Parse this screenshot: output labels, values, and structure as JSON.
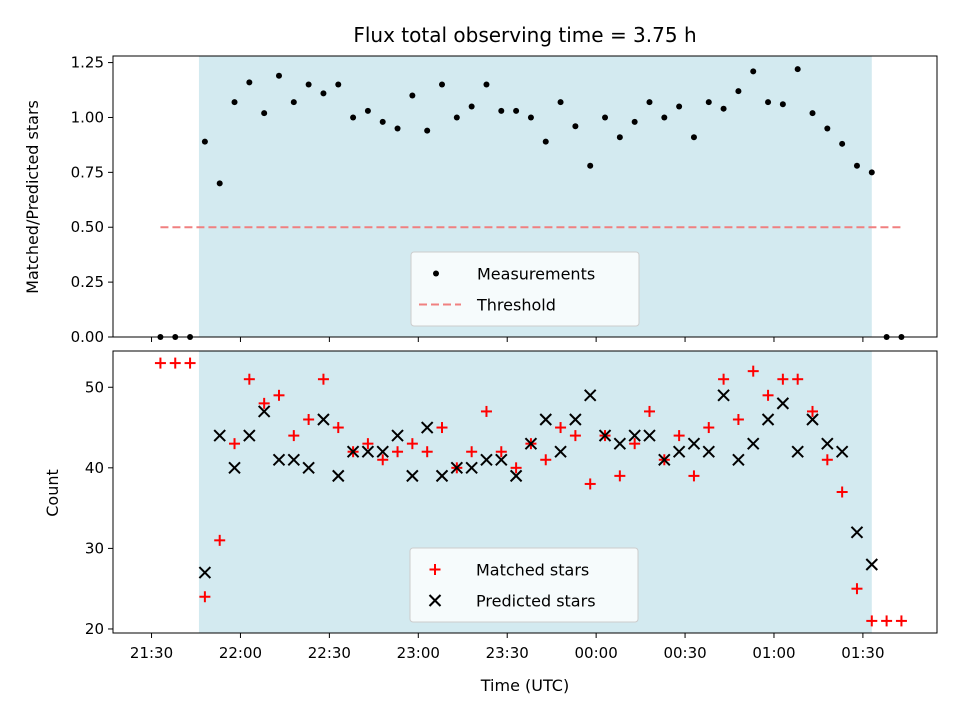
{
  "chart_data": [
    {
      "type": "scatter",
      "title": "Flux total observing time = 3.75 h",
      "ylabel": "Matched/Predicted stars",
      "xlabel": "",
      "ylim": [
        0,
        1.28
      ],
      "yticks": [
        "0.00",
        "0.25",
        "0.50",
        "0.75",
        "1.00",
        "1.25"
      ],
      "shaded_window": {
        "start": "21:46",
        "end": "01:33",
        "color": "#d3eaf0"
      },
      "legend_position": "lower center",
      "series": [
        {
          "name": "Measurements",
          "marker": "dot",
          "color": "#000000",
          "x": [
            "21:33",
            "21:38",
            "21:43",
            "21:48",
            "21:53",
            "21:58",
            "22:03",
            "22:08",
            "22:13",
            "22:18",
            "22:23",
            "22:28",
            "22:33",
            "22:38",
            "22:43",
            "22:48",
            "22:53",
            "22:58",
            "23:03",
            "23:08",
            "23:13",
            "23:18",
            "23:23",
            "23:28",
            "23:33",
            "23:38",
            "23:43",
            "23:48",
            "23:53",
            "23:58",
            "00:03",
            "00:08",
            "00:13",
            "00:18",
            "00:23",
            "00:28",
            "00:33",
            "00:38",
            "00:43",
            "00:48",
            "00:53",
            "00:58",
            "01:03",
            "01:08",
            "01:13",
            "01:18",
            "01:23",
            "01:28",
            "01:33",
            "01:38",
            "01:43"
          ],
          "y": [
            0,
            0,
            0,
            0.89,
            0.7,
            1.07,
            1.16,
            1.02,
            1.19,
            1.07,
            1.15,
            1.11,
            1.15,
            1.0,
            1.03,
            0.98,
            0.95,
            1.1,
            0.94,
            1.15,
            1.0,
            1.05,
            1.15,
            1.03,
            1.03,
            1.0,
            0.89,
            1.07,
            0.96,
            0.78,
            1.0,
            0.91,
            0.98,
            1.07,
            1.0,
            1.05,
            0.91,
            1.07,
            1.04,
            1.12,
            1.21,
            1.07,
            1.06,
            1.22,
            1.02,
            0.95,
            0.88,
            0.78,
            0.75,
            0,
            0
          ]
        },
        {
          "name": "Threshold",
          "marker": "dashed-line",
          "color": "#f08080",
          "x": [
            "21:33",
            "01:43"
          ],
          "y": [
            0.5,
            0.5
          ]
        }
      ]
    },
    {
      "type": "scatter",
      "title": "",
      "ylabel": "Count",
      "xlabel": "Time (UTC)",
      "ylim": [
        19.5,
        54.5
      ],
      "yticks": [
        "20",
        "30",
        "40",
        "50"
      ],
      "xticks": [
        "21:30",
        "22:00",
        "22:30",
        "23:00",
        "23:30",
        "00:00",
        "00:30",
        "01:00",
        "01:30"
      ],
      "shaded_window": {
        "start": "21:46",
        "end": "01:33",
        "color": "#d3eaf0"
      },
      "legend_position": "lower center",
      "series": [
        {
          "name": "Matched stars",
          "marker": "plus",
          "color": "#ff0000",
          "x": [
            "21:33",
            "21:38",
            "21:43",
            "21:48",
            "21:53",
            "21:58",
            "22:03",
            "22:08",
            "22:13",
            "22:18",
            "22:23",
            "22:28",
            "22:33",
            "22:38",
            "22:43",
            "22:48",
            "22:53",
            "22:58",
            "23:03",
            "23:08",
            "23:13",
            "23:18",
            "23:23",
            "23:28",
            "23:33",
            "23:38",
            "23:43",
            "23:48",
            "23:53",
            "23:58",
            "00:03",
            "00:08",
            "00:13",
            "00:18",
            "00:23",
            "00:28",
            "00:33",
            "00:38",
            "00:43",
            "00:48",
            "00:53",
            "00:58",
            "01:03",
            "01:08",
            "01:13",
            "01:18",
            "01:23",
            "01:28",
            "01:33",
            "01:38",
            "01:43"
          ],
          "y": [
            53,
            53,
            53,
            24,
            31,
            43,
            51,
            48,
            49,
            44,
            46,
            51,
            45,
            42,
            43,
            41,
            42,
            43,
            42,
            45,
            40,
            42,
            47,
            42,
            40,
            43,
            41,
            45,
            44,
            38,
            44,
            39,
            43,
            47,
            41,
            44,
            39,
            45,
            51,
            46,
            52,
            49,
            51,
            51,
            47,
            41,
            37,
            25,
            21,
            21,
            21
          ]
        },
        {
          "name": "Predicted stars",
          "marker": "x",
          "color": "#000000",
          "x": [
            "21:48",
            "21:53",
            "21:58",
            "22:03",
            "22:08",
            "22:13",
            "22:18",
            "22:23",
            "22:28",
            "22:33",
            "22:38",
            "22:43",
            "22:48",
            "22:53",
            "22:58",
            "23:03",
            "23:08",
            "23:13",
            "23:18",
            "23:23",
            "23:28",
            "23:33",
            "23:38",
            "23:43",
            "23:48",
            "23:53",
            "23:58",
            "00:03",
            "00:08",
            "00:13",
            "00:18",
            "00:23",
            "00:28",
            "00:33",
            "00:38",
            "00:43",
            "00:48",
            "00:53",
            "00:58",
            "01:03",
            "01:08",
            "01:13",
            "01:18",
            "01:23",
            "01:28",
            "01:33"
          ],
          "y": [
            27,
            44,
            40,
            44,
            47,
            41,
            41,
            40,
            46,
            39,
            42,
            42,
            42,
            44,
            39,
            45,
            39,
            40,
            40,
            41,
            41,
            39,
            43,
            46,
            42,
            46,
            49,
            44,
            43,
            44,
            44,
            41,
            42,
            43,
            42,
            49,
            41,
            43,
            46,
            48,
            42,
            46,
            43,
            42,
            32,
            28
          ]
        }
      ]
    }
  ]
}
